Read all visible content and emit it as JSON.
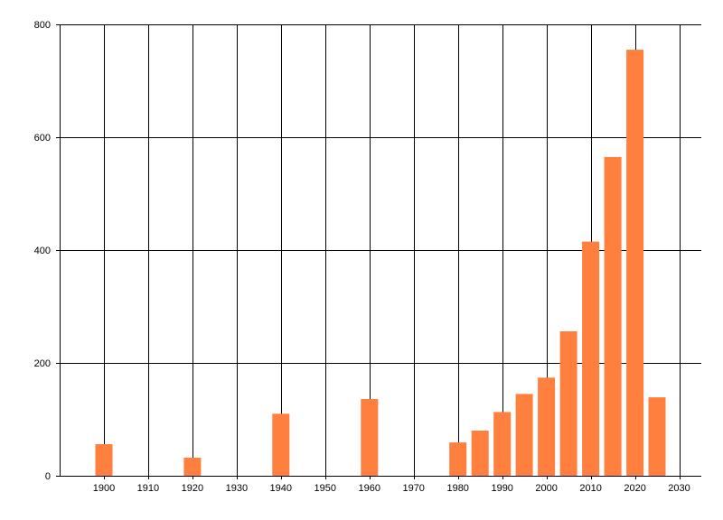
{
  "chart_data": {
    "type": "bar",
    "title": "",
    "xlabel": "",
    "ylabel": "",
    "x": [
      1900,
      1920,
      1940,
      1960,
      1980,
      1985,
      1990,
      1995,
      2000,
      2005,
      2010,
      2015,
      2020,
      2025
    ],
    "values": [
      56,
      32,
      110,
      136,
      59,
      80,
      113,
      145,
      174,
      256,
      415,
      565,
      755,
      139
    ],
    "xlim": [
      1890,
      2035
    ],
    "ylim": [
      0,
      800
    ],
    "x_ticks": [
      1900,
      1910,
      1920,
      1930,
      1940,
      1950,
      1960,
      1970,
      1980,
      1990,
      2000,
      2010,
      2020,
      2030
    ],
    "y_ticks": [
      0,
      200,
      400,
      600,
      800
    ],
    "grid": true,
    "legend": "none",
    "bar_color": "#ff7f3f",
    "grid_color": "#000000"
  }
}
